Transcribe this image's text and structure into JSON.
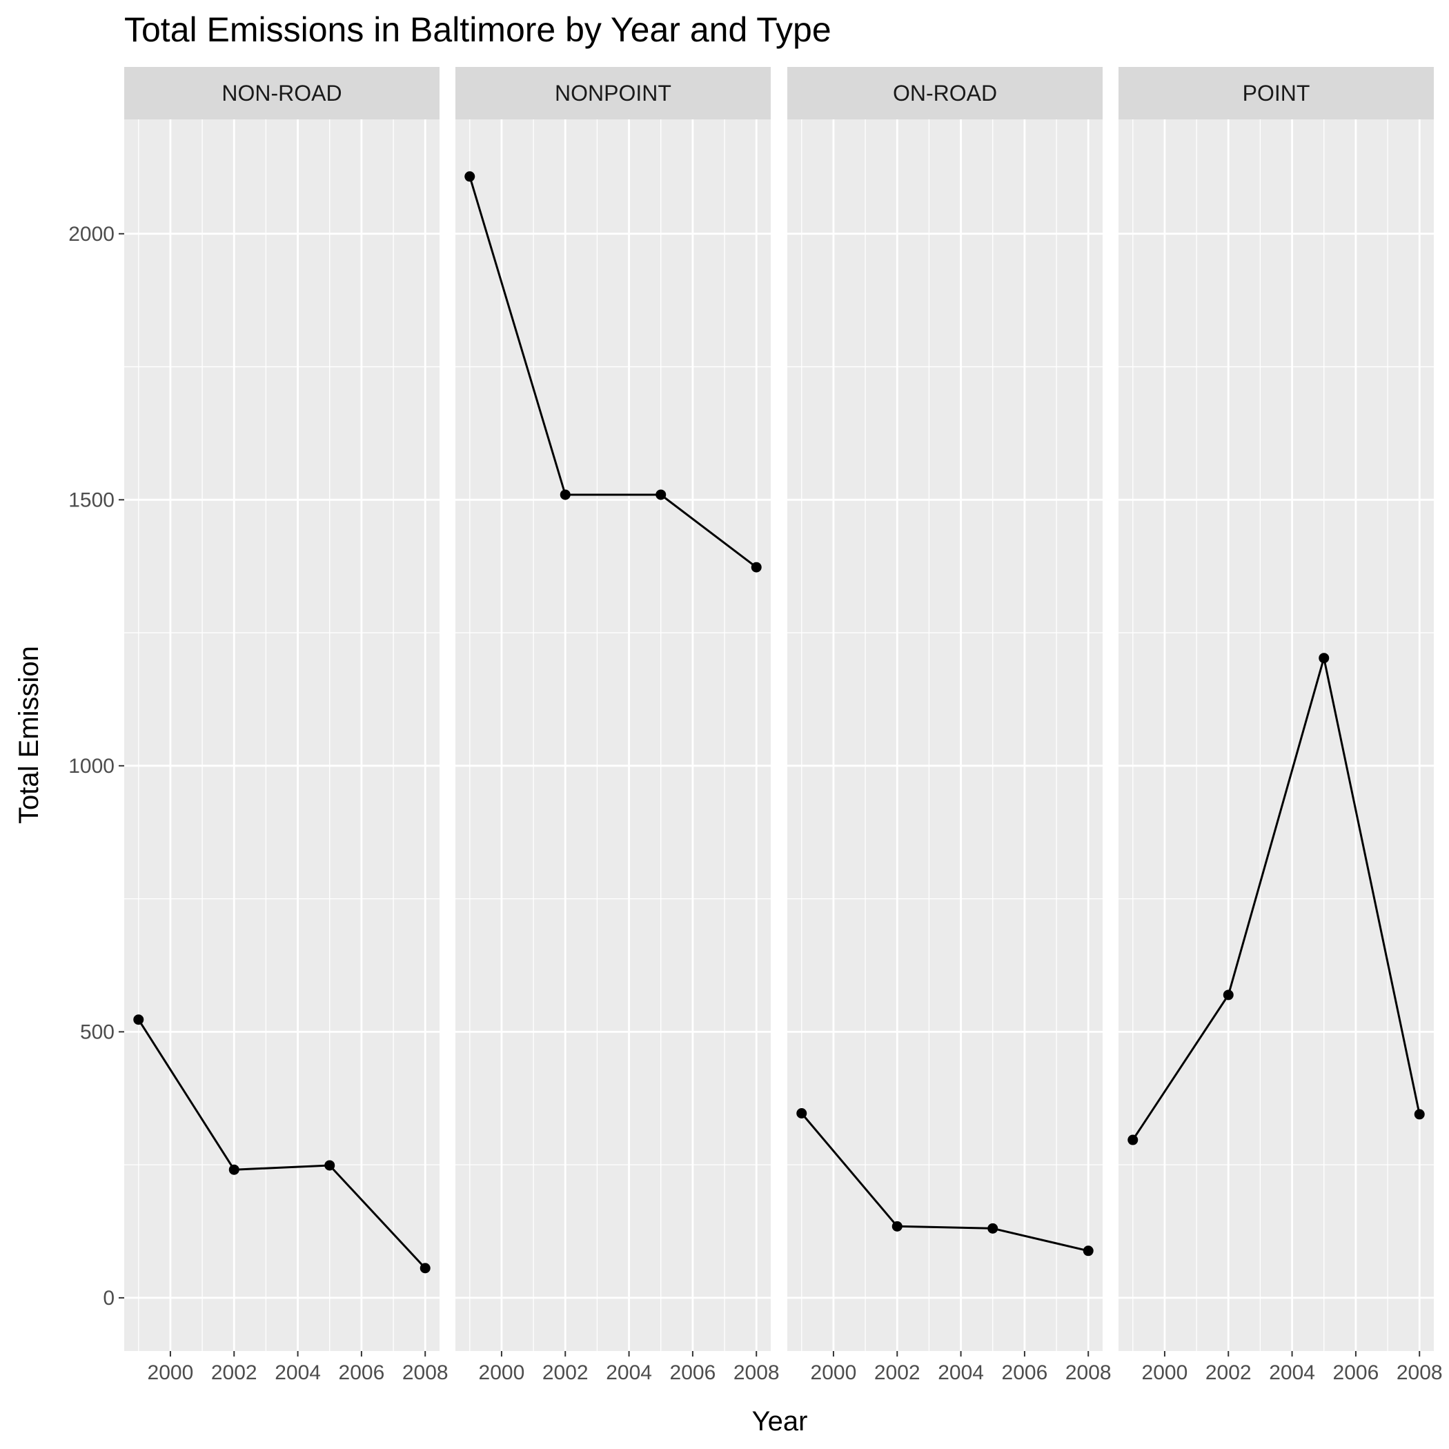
{
  "chart_data": {
    "type": "line",
    "title": "Total Emissions in Baltimore by Year and Type",
    "xlabel": "Year",
    "ylabel": "Total Emission",
    "xlim": [
      1998.55,
      2008.45
    ],
    "ylim": [
      -100,
      2215
    ],
    "x_ticks": [
      2000,
      2002,
      2004,
      2006,
      2008
    ],
    "x_tick_labels": [
      "2000",
      "2002",
      "2004",
      "2006",
      "2008"
    ],
    "y_ticks": [
      0,
      500,
      1000,
      1500,
      2000
    ],
    "y_tick_labels": [
      "0",
      "500",
      "1000",
      "1500",
      "2000"
    ],
    "grid": true,
    "facet_by": "type",
    "panels": [
      {
        "name": "NON-ROAD",
        "x": [
          1999,
          2002,
          2005,
          2008
        ],
        "y": [
          522.9,
          240.8,
          248.9,
          55.8
        ]
      },
      {
        "name": "NONPOINT",
        "x": [
          1999,
          2002,
          2005,
          2008
        ],
        "y": [
          2107.6,
          1509.5,
          1509.5,
          1373.2
        ]
      },
      {
        "name": "ON-ROAD",
        "x": [
          1999,
          2002,
          2005,
          2008
        ],
        "y": [
          346.8,
          134.3,
          130.4,
          88.3
        ]
      },
      {
        "name": "POINT",
        "x": [
          1999,
          2002,
          2005,
          2008
        ],
        "y": [
          296.8,
          569.3,
          1202.5,
          344.98
        ]
      }
    ],
    "colors": {
      "panel_background": "#ebebeb",
      "strip_background": "#d9d9d9",
      "grid": "#ffffff",
      "line": "#000000",
      "point": "#000000"
    }
  }
}
